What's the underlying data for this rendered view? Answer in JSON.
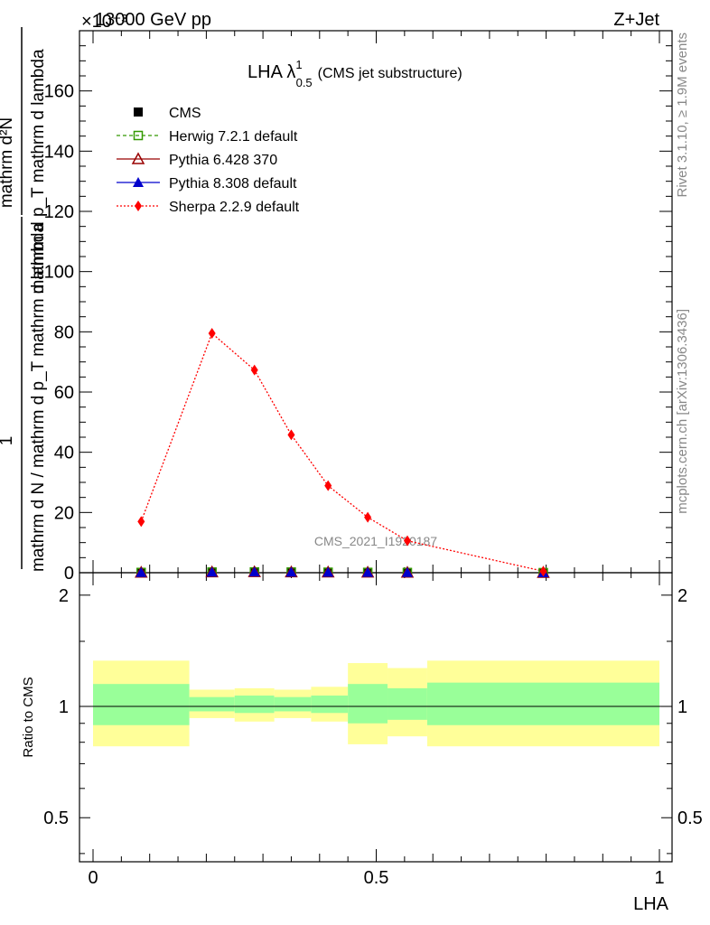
{
  "header": {
    "energy_label": "13000 GeV pp",
    "process_label": "Z+Jet",
    "scale_factor": "×10⁻³"
  },
  "plot": {
    "title_main": "LHA λ",
    "title_sup": "1",
    "title_sub": "0.5",
    "title_rest": "(CMS jet substructure)",
    "watermark": "CMS_2021_I1920187",
    "rivet_label": "Rivet 3.1.10, ≥ 1.9M events",
    "mcplots_label": "mcplots.cern.ch [arXiv:1306.3436]",
    "ylabel_upper_frac_num": "1",
    "ylabel_upper_frac_den": "mathrm d N / mathrm d p_T mathrm d lambda",
    "ylabel_upper_num": "mathrm d²N",
    "ylabel_upper_den": "mathrm d p_T mathrm d lambda",
    "ylabel_ratio": "Ratio to CMS",
    "xlabel": "LHA"
  },
  "legend": [
    {
      "name": "CMS",
      "color": "#000000",
      "marker": "square-filled"
    },
    {
      "name": "Herwig 7.2.1 default",
      "color": "#339900",
      "marker": "square-open"
    },
    {
      "name": "Pythia 6.428 370",
      "color": "#990000",
      "marker": "triangle-open"
    },
    {
      "name": "Pythia 8.308 default",
      "color": "#0000cc",
      "marker": "triangle-filled"
    },
    {
      "name": "Sherpa 2.2.9 default",
      "color": "#ff0000",
      "marker": "diamond-filled"
    }
  ],
  "chart_data": [
    {
      "type": "line",
      "panel": "main",
      "x": [
        0.085,
        0.21,
        0.285,
        0.35,
        0.415,
        0.485,
        0.555,
        0.795
      ],
      "xlim": [
        0,
        1
      ],
      "ylim": [
        0,
        180
      ],
      "yticks": [
        0,
        20,
        40,
        60,
        80,
        100,
        120,
        140,
        160
      ],
      "series": [
        {
          "name": "CMS",
          "values": [
            0.08,
            0.2,
            0.25,
            0.2,
            0.15,
            0.1,
            0.06,
            0.01
          ]
        },
        {
          "name": "Herwig 7.2.1 default",
          "values": [
            0.08,
            0.2,
            0.25,
            0.2,
            0.15,
            0.1,
            0.06,
            0.01
          ]
        },
        {
          "name": "Pythia 6.428 370",
          "values": [
            0.08,
            0.2,
            0.25,
            0.2,
            0.15,
            0.1,
            0.06,
            0.01
          ]
        },
        {
          "name": "Pythia 8.308 default",
          "values": [
            0.08,
            0.2,
            0.25,
            0.2,
            0.15,
            0.1,
            0.06,
            0.01
          ]
        },
        {
          "name": "Sherpa 2.2.9 default",
          "values": [
            17.0,
            79.5,
            67.3,
            45.8,
            28.9,
            18.4,
            10.6,
            0.5
          ]
        }
      ]
    },
    {
      "type": "area",
      "panel": "ratio",
      "xlim": [
        0,
        1
      ],
      "ylim": [
        0.38,
        2.3
      ],
      "log_y": true,
      "yticks": [
        0.5,
        1,
        2
      ],
      "xticks": [
        0,
        0.5,
        1
      ],
      "reference_line": 1,
      "bins": [
        {
          "x0": 0.0,
          "x1": 0.17,
          "stat_lo": 0.89,
          "stat_hi": 1.15,
          "tot_lo": 0.78,
          "tot_hi": 1.33
        },
        {
          "x0": 0.17,
          "x1": 0.25,
          "stat_lo": 0.97,
          "stat_hi": 1.06,
          "tot_lo": 0.93,
          "tot_hi": 1.11
        },
        {
          "x0": 0.25,
          "x1": 0.32,
          "stat_lo": 0.96,
          "stat_hi": 1.07,
          "tot_lo": 0.91,
          "tot_hi": 1.12
        },
        {
          "x0": 0.32,
          "x1": 0.385,
          "stat_lo": 0.97,
          "stat_hi": 1.06,
          "tot_lo": 0.93,
          "tot_hi": 1.11
        },
        {
          "x0": 0.385,
          "x1": 0.45,
          "stat_lo": 0.96,
          "stat_hi": 1.07,
          "tot_lo": 0.91,
          "tot_hi": 1.13
        },
        {
          "x0": 0.45,
          "x1": 0.52,
          "stat_lo": 0.9,
          "stat_hi": 1.15,
          "tot_lo": 0.79,
          "tot_hi": 1.31
        },
        {
          "x0": 0.52,
          "x1": 0.59,
          "stat_lo": 0.92,
          "stat_hi": 1.12,
          "tot_lo": 0.83,
          "tot_hi": 1.27
        },
        {
          "x0": 0.59,
          "x1": 1.0,
          "stat_lo": 0.89,
          "stat_hi": 1.16,
          "tot_lo": 0.78,
          "tot_hi": 1.33
        }
      ],
      "band_colors": {
        "stat": "#99ff99",
        "total": "#ffff99"
      }
    }
  ]
}
